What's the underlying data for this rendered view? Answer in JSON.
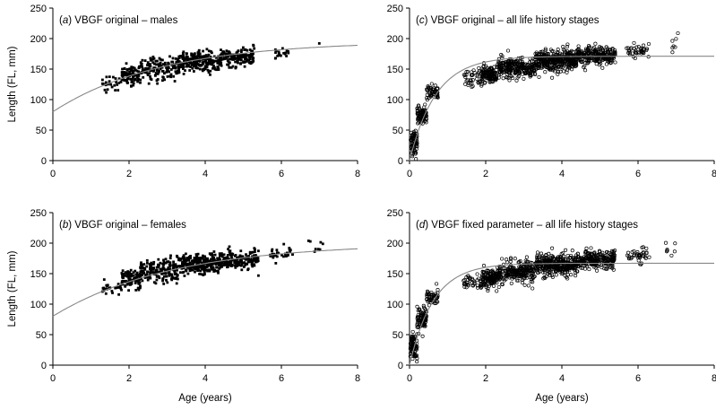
{
  "chart_data": [
    {
      "type": "scatter",
      "panel_label": "(a)",
      "title": "VBGF original – males",
      "ylabel": "Length (FL, mm)",
      "xlabel": "",
      "xlim": [
        0,
        8
      ],
      "ylim": [
        0,
        250
      ],
      "xticks": [
        "0",
        "2",
        "4",
        "6",
        "8"
      ],
      "yticks": [
        "0",
        "50",
        "100",
        "150",
        "200",
        "250"
      ],
      "marker": "filled-square",
      "marker_color": "#000000",
      "curve_color": "#888888",
      "vbgf_curve": {
        "Linf": 196,
        "K": 0.35,
        "t0": -1.5
      },
      "clusters": [
        {
          "age_range": [
            1.3,
            1.8
          ],
          "mean_length": 125,
          "spread": 12,
          "n": 25
        },
        {
          "age_range": [
            1.8,
            2.3
          ],
          "mean_length": 138,
          "spread": 14,
          "n": 90
        },
        {
          "age_range": [
            2.3,
            3.3
          ],
          "mean_length": 150,
          "spread": 16,
          "n": 150
        },
        {
          "age_range": [
            3.3,
            4.4
          ],
          "mean_length": 162,
          "spread": 15,
          "n": 220
        },
        {
          "age_range": [
            4.4,
            5.3
          ],
          "mean_length": 170,
          "spread": 13,
          "n": 150
        },
        {
          "age_range": [
            5.8,
            6.2
          ],
          "mean_length": 176,
          "spread": 9,
          "n": 20
        },
        {
          "age_range": [
            6.9,
            7.0
          ],
          "mean_length": 194,
          "spread": 2,
          "n": 1
        }
      ]
    },
    {
      "type": "scatter",
      "panel_label": "(c)",
      "title": "VBGF original – all life history stages",
      "ylabel": "",
      "xlabel": "",
      "xlim": [
        0,
        8
      ],
      "ylim": [
        0,
        250
      ],
      "xticks": [
        "0",
        "2",
        "4",
        "6",
        "8"
      ],
      "yticks": [
        "0",
        "50",
        "100",
        "150",
        "200",
        "250"
      ],
      "marker": "open-circle",
      "marker_color": "#000000",
      "curve_color": "#888888",
      "vbgf_curve": {
        "Linf": 171,
        "K": 1.45,
        "t0": 0.0
      },
      "clusters": [
        {
          "age_range": [
            0.02,
            0.2
          ],
          "mean_length": 30,
          "spread": 18,
          "n": 80
        },
        {
          "age_range": [
            0.2,
            0.45
          ],
          "mean_length": 75,
          "spread": 15,
          "n": 90
        },
        {
          "age_range": [
            0.45,
            0.75
          ],
          "mean_length": 110,
          "spread": 12,
          "n": 50
        },
        {
          "age_range": [
            1.4,
            1.9
          ],
          "mean_length": 135,
          "spread": 12,
          "n": 40
        },
        {
          "age_range": [
            1.9,
            2.3
          ],
          "mean_length": 142,
          "spread": 12,
          "n": 120
        },
        {
          "age_range": [
            2.3,
            3.3
          ],
          "mean_length": 152,
          "spread": 15,
          "n": 240
        },
        {
          "age_range": [
            3.3,
            4.4
          ],
          "mean_length": 164,
          "spread": 15,
          "n": 340
        },
        {
          "age_range": [
            4.4,
            5.4
          ],
          "mean_length": 172,
          "spread": 13,
          "n": 230
        },
        {
          "age_range": [
            5.7,
            6.3
          ],
          "mean_length": 180,
          "spread": 11,
          "n": 40
        },
        {
          "age_range": [
            6.7,
            7.1
          ],
          "mean_length": 190,
          "spread": 14,
          "n": 7
        }
      ]
    },
    {
      "type": "scatter",
      "panel_label": "(b)",
      "title": "VBGF original – females",
      "ylabel": "Length (FL, mm)",
      "xlabel": "Age (years)",
      "xlim": [
        0,
        8
      ],
      "ylim": [
        0,
        250
      ],
      "xticks": [
        "0",
        "2",
        "4",
        "6",
        "8"
      ],
      "yticks": [
        "0",
        "50",
        "100",
        "150",
        "200",
        "250"
      ],
      "marker": "filled-square",
      "marker_color": "#000000",
      "curve_color": "#888888",
      "vbgf_curve": {
        "Linf": 200,
        "K": 0.32,
        "t0": -1.6
      },
      "clusters": [
        {
          "age_range": [
            1.3,
            1.8
          ],
          "mean_length": 128,
          "spread": 12,
          "n": 25
        },
        {
          "age_range": [
            1.8,
            2.3
          ],
          "mean_length": 140,
          "spread": 14,
          "n": 100
        },
        {
          "age_range": [
            2.3,
            3.3
          ],
          "mean_length": 155,
          "spread": 16,
          "n": 170
        },
        {
          "age_range": [
            3.3,
            4.4
          ],
          "mean_length": 166,
          "spread": 15,
          "n": 250
        },
        {
          "age_range": [
            4.4,
            5.4
          ],
          "mean_length": 173,
          "spread": 13,
          "n": 170
        },
        {
          "age_range": [
            5.7,
            6.3
          ],
          "mean_length": 182,
          "spread": 11,
          "n": 30
        },
        {
          "age_range": [
            6.7,
            7.1
          ],
          "mean_length": 190,
          "spread": 14,
          "n": 8
        }
      ]
    },
    {
      "type": "scatter",
      "panel_label": "(d)",
      "title": "VBGF fixed parameter – all life history stages",
      "ylabel": "",
      "xlabel": "Age (years)",
      "xlim": [
        0,
        8
      ],
      "ylim": [
        0,
        250
      ],
      "xticks": [
        "0",
        "2",
        "4",
        "6",
        "8"
      ],
      "yticks": [
        "0",
        "50",
        "100",
        "150",
        "200",
        "250"
      ],
      "marker": "open-circle",
      "marker_color": "#000000",
      "curve_color": "#888888",
      "vbgf_curve": {
        "Linf": 167,
        "K": 1.6,
        "t0": 0.0
      },
      "clusters": [
        {
          "age_range": [
            0.02,
            0.2
          ],
          "mean_length": 30,
          "spread": 18,
          "n": 80
        },
        {
          "age_range": [
            0.2,
            0.45
          ],
          "mean_length": 75,
          "spread": 15,
          "n": 90
        },
        {
          "age_range": [
            0.45,
            0.75
          ],
          "mean_length": 110,
          "spread": 12,
          "n": 50
        },
        {
          "age_range": [
            1.4,
            1.9
          ],
          "mean_length": 135,
          "spread": 12,
          "n": 40
        },
        {
          "age_range": [
            1.9,
            2.3
          ],
          "mean_length": 142,
          "spread": 12,
          "n": 120
        },
        {
          "age_range": [
            2.3,
            3.3
          ],
          "mean_length": 152,
          "spread": 15,
          "n": 240
        },
        {
          "age_range": [
            3.3,
            4.4
          ],
          "mean_length": 164,
          "spread": 15,
          "n": 340
        },
        {
          "age_range": [
            4.4,
            5.4
          ],
          "mean_length": 172,
          "spread": 13,
          "n": 230
        },
        {
          "age_range": [
            5.7,
            6.3
          ],
          "mean_length": 180,
          "spread": 11,
          "n": 40
        },
        {
          "age_range": [
            6.7,
            7.1
          ],
          "mean_length": 190,
          "spread": 14,
          "n": 7
        }
      ]
    }
  ]
}
